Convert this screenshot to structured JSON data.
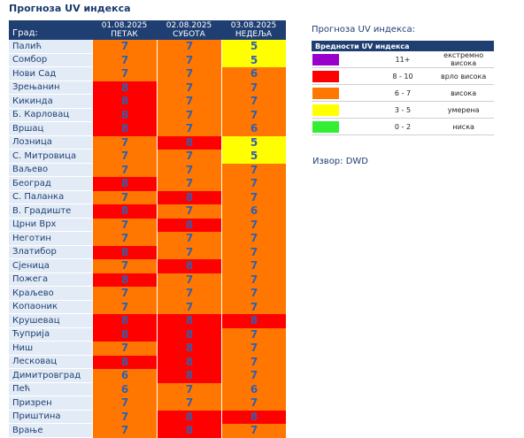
{
  "page": {
    "title": "Прогноза UV индекса"
  },
  "colors": {
    "extreme": "#9900cc",
    "very_high": "#ff0000",
    "high": "#ff7700",
    "moderate": "#ffff00",
    "low": "#33ee33",
    "header_bg": "#1f3f73",
    "city_bg": "#e3ecf6",
    "value_text": "#3060b0"
  },
  "forecast": {
    "city_header": "Град:",
    "days": [
      {
        "date": "01.08.2025",
        "weekday": "ПЕТАК"
      },
      {
        "date": "02.08.2025",
        "weekday": "СУБОТА"
      },
      {
        "date": "03.08.2025",
        "weekday": "НЕДЕЉА"
      }
    ],
    "rows": [
      {
        "city": "Палић",
        "values": [
          "7",
          "7",
          "5"
        ]
      },
      {
        "city": "Сомбор",
        "values": [
          "7",
          "7",
          "5"
        ]
      },
      {
        "city": "Нови Сад",
        "values": [
          "7",
          "7",
          "6"
        ]
      },
      {
        "city": "Зрењанин",
        "values": [
          "8",
          "7",
          "7"
        ]
      },
      {
        "city": "Кикинда",
        "values": [
          "8",
          "7",
          "7"
        ]
      },
      {
        "city": "Б. Карловац",
        "values": [
          "8",
          "7",
          "7"
        ]
      },
      {
        "city": "Вршац",
        "values": [
          "8",
          "7",
          "6"
        ]
      },
      {
        "city": "Лозница",
        "values": [
          "7",
          "8",
          "5"
        ]
      },
      {
        "city": "С. Митровица",
        "values": [
          "7",
          "7",
          "5"
        ]
      },
      {
        "city": "Ваљево",
        "values": [
          "7",
          "7",
          "7"
        ]
      },
      {
        "city": "Београд",
        "values": [
          "8",
          "7",
          "7"
        ]
      },
      {
        "city": "С. Паланка",
        "values": [
          "7",
          "8",
          "7"
        ]
      },
      {
        "city": "В. Градиште",
        "values": [
          "8",
          "7",
          "6"
        ]
      },
      {
        "city": "Црни Врх",
        "values": [
          "7",
          "8",
          "7"
        ]
      },
      {
        "city": "Неготин",
        "values": [
          "7",
          "7",
          "7"
        ]
      },
      {
        "city": "Златибор",
        "values": [
          "8",
          "7",
          "7"
        ]
      },
      {
        "city": "Сјеница",
        "values": [
          "7",
          "8",
          "7"
        ]
      },
      {
        "city": "Пожега",
        "values": [
          "8",
          "7",
          "7"
        ]
      },
      {
        "city": "Краљево",
        "values": [
          "7",
          "7",
          "7"
        ]
      },
      {
        "city": "Копаоник",
        "values": [
          "7",
          "7",
          "7"
        ]
      },
      {
        "city": "Крушевац",
        "values": [
          "8",
          "8",
          "8"
        ]
      },
      {
        "city": "Ћуприја",
        "values": [
          "8",
          "8",
          "7"
        ]
      },
      {
        "city": "Ниш",
        "values": [
          "7",
          "8",
          "7"
        ]
      },
      {
        "city": "Лесковац",
        "values": [
          "8",
          "8",
          "7"
        ]
      },
      {
        "city": "Димитровград",
        "values": [
          "6",
          "8",
          "7"
        ]
      },
      {
        "city": "Пећ",
        "values": [
          "6",
          "7",
          "6"
        ]
      },
      {
        "city": "Призрен",
        "values": [
          "7",
          "7",
          "7"
        ]
      },
      {
        "city": "Приштина",
        "values": [
          "7",
          "8",
          "8"
        ]
      },
      {
        "city": "Врање",
        "values": [
          "7",
          "8",
          "7"
        ]
      }
    ]
  },
  "legend": {
    "title": "Прогноза UV индекса:",
    "header": "Вредности UV индекса",
    "items": [
      {
        "range": "11+",
        "label": "екстремно висока",
        "color": "#9900cc"
      },
      {
        "range": "8 - 10",
        "label": "врло висока",
        "color": "#ff0000"
      },
      {
        "range": "6 - 7",
        "label": "висока",
        "color": "#ff7700"
      },
      {
        "range": "3 - 5",
        "label": "умерена",
        "color": "#ffff00"
      },
      {
        "range": "0 - 2",
        "label": "ниска",
        "color": "#33ee33"
      }
    ]
  },
  "source": {
    "text": "Извор: DWD"
  }
}
